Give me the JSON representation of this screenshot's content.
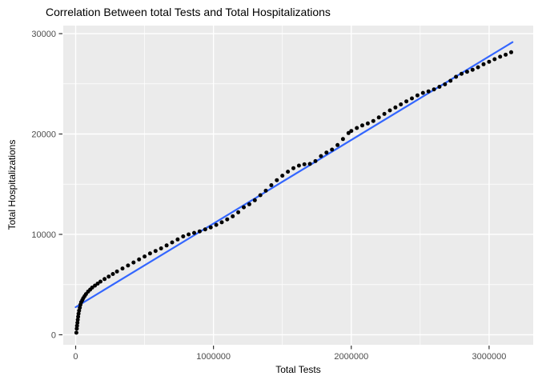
{
  "chart_data": {
    "type": "scatter",
    "title": "Correlation Between total Tests and Total Hospitalizations",
    "xlabel": "Total Tests",
    "ylabel": "Total Hospitalizations",
    "xlim": [
      -90000,
      3320000
    ],
    "ylim": [
      -1000,
      30800
    ],
    "x_ticks": [
      0,
      1000000,
      2000000,
      3000000
    ],
    "x_tick_labels": [
      "0",
      "1000000",
      "2000000",
      "3000000"
    ],
    "x_minor_ticks": [
      500000,
      1500000,
      2500000
    ],
    "y_ticks": [
      0,
      10000,
      20000,
      30000
    ],
    "y_tick_labels": [
      "0",
      "10000",
      "20000",
      "30000"
    ],
    "y_minor_ticks": [
      5000,
      15000,
      25000
    ],
    "grid": "on",
    "legend": "none",
    "colors": {
      "panel_bg": "#EBEBEB",
      "grid": "#FFFFFF",
      "points": "#000000",
      "regression_line": "#3366FF",
      "tick_text": "#4D4D4D",
      "tick_mark": "#333333"
    },
    "regression_line": {
      "x1": 0,
      "y1": 2750,
      "x2": 3170000,
      "y2": 29150
    },
    "points": [
      [
        5000,
        200
      ],
      [
        8000,
        600
      ],
      [
        10000,
        900
      ],
      [
        13000,
        1200
      ],
      [
        15000,
        1500
      ],
      [
        18000,
        1800
      ],
      [
        21000,
        2100
      ],
      [
        25000,
        2400
      ],
      [
        30000,
        2700
      ],
      [
        35000,
        3000
      ],
      [
        40000,
        3250
      ],
      [
        48000,
        3450
      ],
      [
        55000,
        3650
      ],
      [
        65000,
        3850
      ],
      [
        75000,
        4050
      ],
      [
        90000,
        4300
      ],
      [
        105000,
        4500
      ],
      [
        120000,
        4700
      ],
      [
        140000,
        4900
      ],
      [
        160000,
        5100
      ],
      [
        180000,
        5300
      ],
      [
        210000,
        5550
      ],
      [
        240000,
        5800
      ],
      [
        270000,
        6050
      ],
      [
        300000,
        6300
      ],
      [
        340000,
        6600
      ],
      [
        380000,
        6900
      ],
      [
        420000,
        7200
      ],
      [
        460000,
        7500
      ],
      [
        500000,
        7800
      ],
      [
        540000,
        8100
      ],
      [
        580000,
        8350
      ],
      [
        620000,
        8600
      ],
      [
        660000,
        8900
      ],
      [
        700000,
        9200
      ],
      [
        740000,
        9500
      ],
      [
        780000,
        9800
      ],
      [
        820000,
        10000
      ],
      [
        860000,
        10150
      ],
      [
        900000,
        10300
      ],
      [
        940000,
        10500
      ],
      [
        980000,
        10700
      ],
      [
        1020000,
        10950
      ],
      [
        1060000,
        11200
      ],
      [
        1100000,
        11500
      ],
      [
        1140000,
        11800
      ],
      [
        1180000,
        12200
      ],
      [
        1220000,
        12700
      ],
      [
        1260000,
        13000
      ],
      [
        1300000,
        13400
      ],
      [
        1340000,
        13900
      ],
      [
        1380000,
        14350
      ],
      [
        1420000,
        14900
      ],
      [
        1460000,
        15400
      ],
      [
        1500000,
        15850
      ],
      [
        1540000,
        16250
      ],
      [
        1580000,
        16600
      ],
      [
        1620000,
        16850
      ],
      [
        1660000,
        16980
      ],
      [
        1700000,
        17020
      ],
      [
        1740000,
        17300
      ],
      [
        1780000,
        17800
      ],
      [
        1820000,
        18150
      ],
      [
        1860000,
        18450
      ],
      [
        1900000,
        18900
      ],
      [
        1940000,
        19500
      ],
      [
        1980000,
        20100
      ],
      [
        2000000,
        20300
      ],
      [
        2040000,
        20600
      ],
      [
        2080000,
        20850
      ],
      [
        2120000,
        21050
      ],
      [
        2160000,
        21300
      ],
      [
        2200000,
        21650
      ],
      [
        2240000,
        22000
      ],
      [
        2280000,
        22350
      ],
      [
        2320000,
        22650
      ],
      [
        2360000,
        22950
      ],
      [
        2400000,
        23250
      ],
      [
        2440000,
        23550
      ],
      [
        2480000,
        23850
      ],
      [
        2520000,
        24100
      ],
      [
        2560000,
        24250
      ],
      [
        2600000,
        24450
      ],
      [
        2640000,
        24700
      ],
      [
        2680000,
        24950
      ],
      [
        2720000,
        25300
      ],
      [
        2760000,
        25700
      ],
      [
        2800000,
        26000
      ],
      [
        2840000,
        26200
      ],
      [
        2880000,
        26400
      ],
      [
        2920000,
        26650
      ],
      [
        2960000,
        26950
      ],
      [
        3000000,
        27200
      ],
      [
        3040000,
        27450
      ],
      [
        3080000,
        27700
      ],
      [
        3120000,
        27900
      ],
      [
        3160000,
        28150
      ]
    ]
  }
}
